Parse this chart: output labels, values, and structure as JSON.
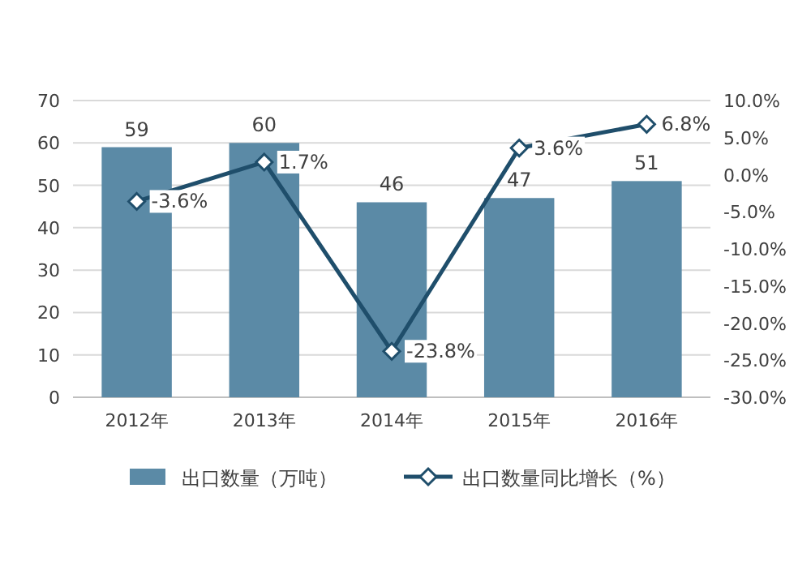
{
  "chart_data": {
    "type": "bar",
    "categories": [
      "2012年",
      "2013年",
      "2014年",
      "2015年",
      "2016年"
    ],
    "series": [
      {
        "name": "出口数量（万吨）",
        "color": "#5b8aa6",
        "values": [
          59,
          60,
          46,
          47,
          51
        ],
        "value_labels": [
          "59",
          "60",
          "46",
          "47",
          "51"
        ]
      },
      {
        "name": "出口数量同比增长（%）",
        "type": "line",
        "axis": "y2",
        "color": "#1f4e6b",
        "values": [
          -3.6,
          1.7,
          -23.8,
          3.6,
          6.8
        ],
        "value_labels": [
          "-3.6%",
          "1.7%",
          "-23.8%",
          "3.6%",
          "6.8%"
        ]
      }
    ],
    "ylim": [
      0,
      70
    ],
    "yticks": [
      0,
      10,
      20,
      30,
      40,
      50,
      60,
      70
    ],
    "y2lim": [
      -30,
      10
    ],
    "y2ticks": [
      {
        "value": -30,
        "label": "-30.0%"
      },
      {
        "value": -25,
        "label": "-25.0%"
      },
      {
        "value": -20,
        "label": "-20.0%"
      },
      {
        "value": -15,
        "label": "-15.0%"
      },
      {
        "value": -10,
        "label": "-10.0%"
      },
      {
        "value": -5,
        "label": "-5.0%"
      },
      {
        "value": 0,
        "label": "0.0%"
      },
      {
        "value": 5,
        "label": "5.0%"
      },
      {
        "value": 10,
        "label": "10.0%"
      }
    ],
    "grid": "y",
    "legend": "bottom",
    "marker": "diamond",
    "line_style": "solid"
  }
}
